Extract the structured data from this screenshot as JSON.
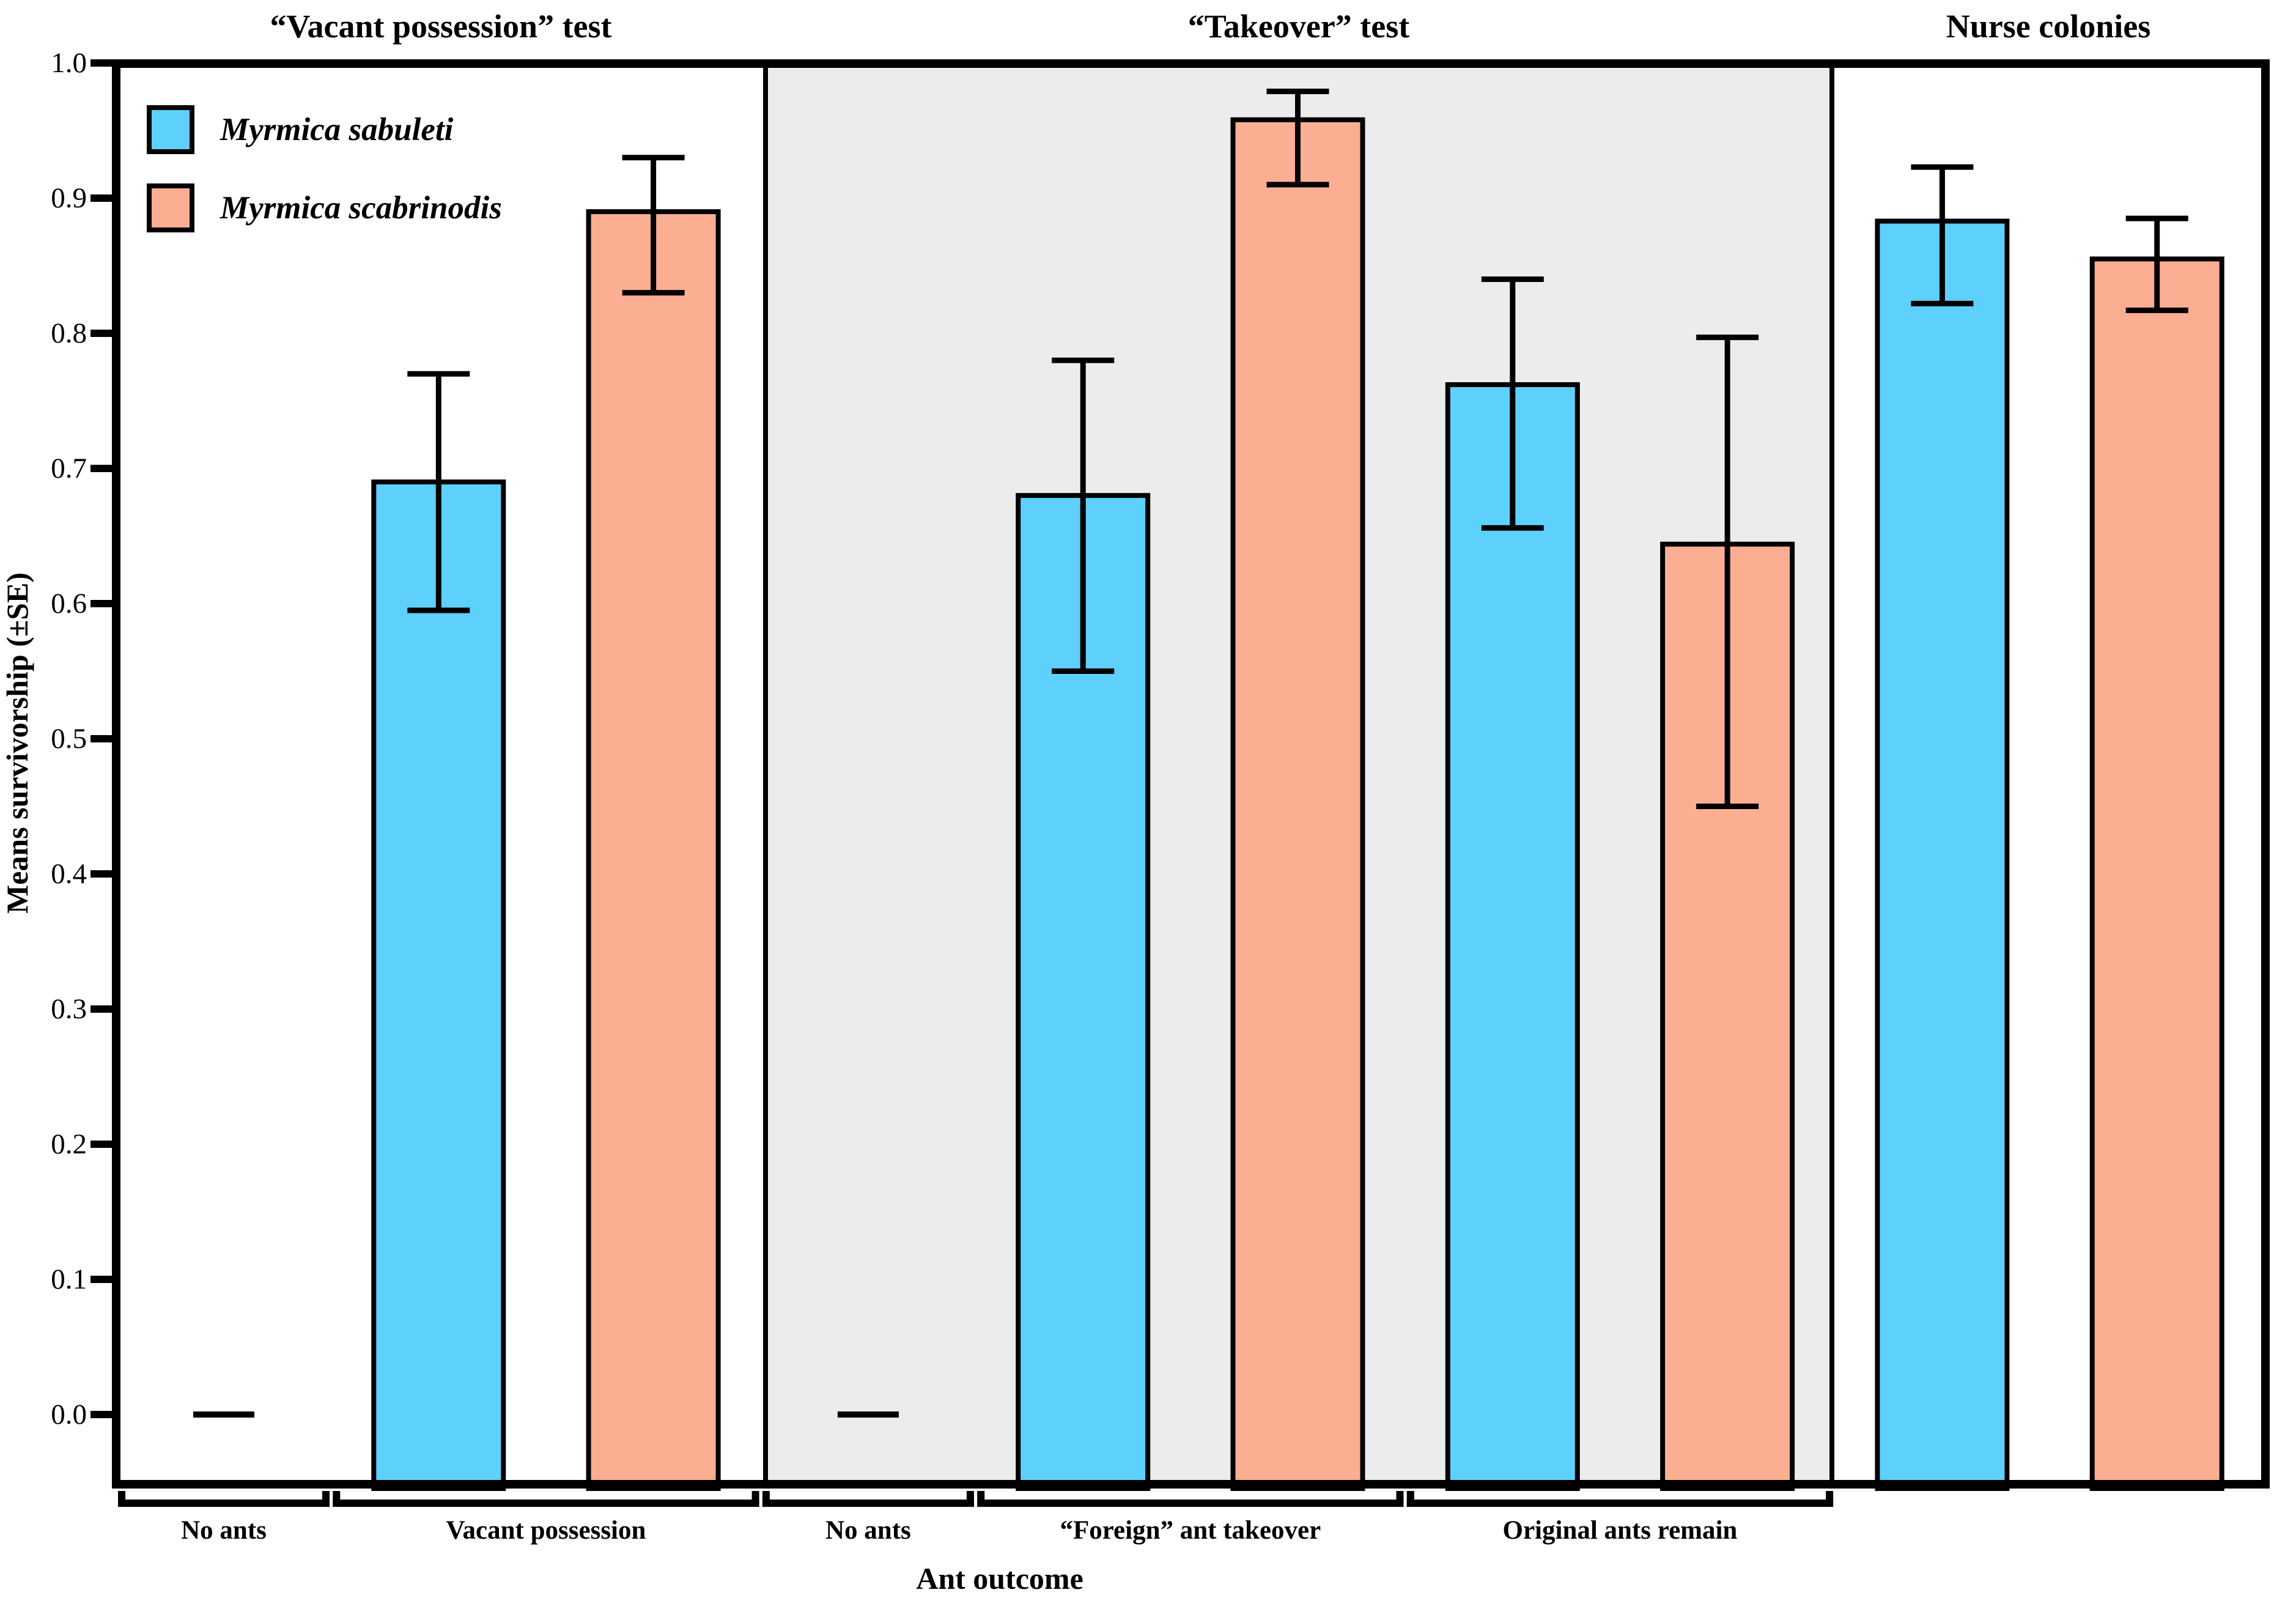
{
  "chart_data": {
    "type": "bar",
    "title": "",
    "ylabel": "Means survivorship (±SE)",
    "xlabel": "Ant outcome",
    "ylim": [
      -0.052,
      1.0
    ],
    "yticks": [
      "0.0",
      "0.1",
      "0.2",
      "0.3",
      "0.4",
      "0.5",
      "0.6",
      "0.7",
      "0.8",
      "0.9",
      "1.0"
    ],
    "grid": false,
    "legend_position": "top-left inside plot",
    "error_bars": "±SE, capped, drawn above and below bar top",
    "panels": [
      {
        "label": "“Vacant possession” test",
        "background": "#FFFFFF"
      },
      {
        "label": "“Takeover” test",
        "background": "#ECECEC"
      },
      {
        "label": "Nurse colonies",
        "background": "#FFFFFF"
      }
    ],
    "legend": [
      {
        "label": "Myrmica sabuleti",
        "color": "#5DD1FB"
      },
      {
        "label": "Myrmica scabrinodis",
        "color": "#FCAE93"
      }
    ],
    "groups": [
      {
        "label": "No ants",
        "panel": 0,
        "bracket": true,
        "bars": [
          {
            "species": "none",
            "value": 0.0
          }
        ]
      },
      {
        "label": "Vacant possession",
        "panel": 0,
        "bracket": true,
        "bars": [
          {
            "species": "Myrmica sabuleti",
            "value": 0.69,
            "err_lo": 0.595,
            "err_hi": 0.77
          },
          {
            "species": "Myrmica scabrinodis",
            "value": 0.89,
            "err_lo": 0.83,
            "err_hi": 0.93
          }
        ]
      },
      {
        "label": "No ants",
        "panel": 1,
        "bracket": true,
        "bars": [
          {
            "species": "none",
            "value": 0.0
          }
        ]
      },
      {
        "label": "“Foreign” ant takeover",
        "panel": 1,
        "bracket": true,
        "bars": [
          {
            "species": "Myrmica sabuleti",
            "value": 0.68,
            "err_lo": 0.55,
            "err_hi": 0.78
          },
          {
            "species": "Myrmica scabrinodis",
            "value": 0.958,
            "err_lo": 0.91,
            "err_hi": 0.979
          }
        ]
      },
      {
        "label": "Original ants remain",
        "panel": 1,
        "bracket": true,
        "bars": [
          {
            "species": "Myrmica sabuleti",
            "value": 0.762,
            "err_lo": 0.656,
            "err_hi": 0.84
          },
          {
            "species": "Myrmica scabrinodis",
            "value": 0.644,
            "err_lo": 0.45,
            "err_hi": 0.797
          }
        ]
      },
      {
        "label": "",
        "panel": 2,
        "bracket": false,
        "bars": [
          {
            "species": "Myrmica sabuleti",
            "value": 0.883,
            "err_lo": 0.822,
            "err_hi": 0.923
          },
          {
            "species": "Myrmica scabrinodis",
            "value": 0.855,
            "err_lo": 0.817,
            "err_hi": 0.885
          }
        ]
      }
    ]
  }
}
